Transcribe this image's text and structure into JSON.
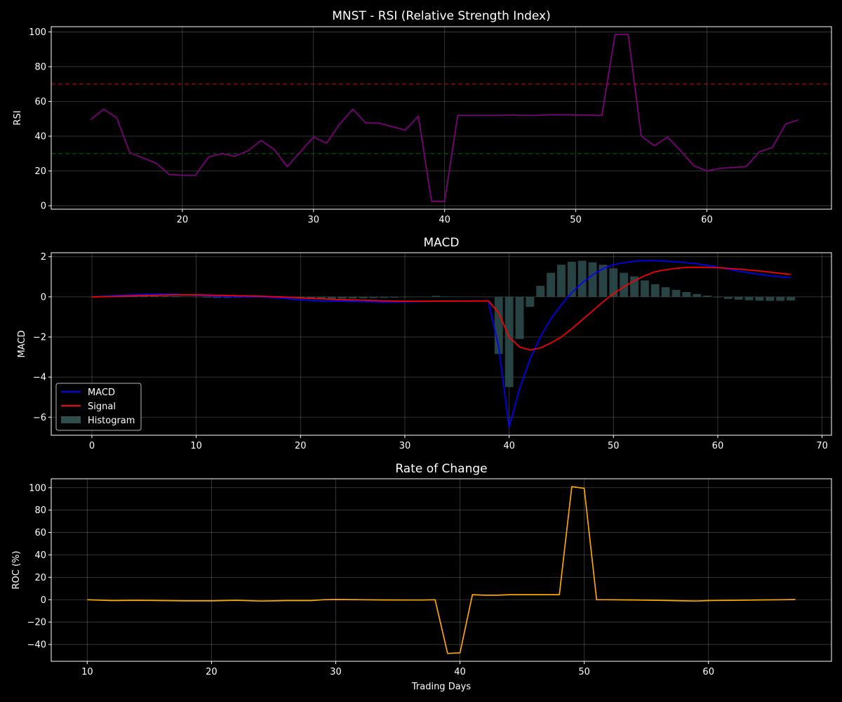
{
  "figure": {
    "background": "#000000"
  },
  "chart_data": [
    {
      "type": "line",
      "title": "MNST - RSI (Relative Strength Index)",
      "xlabel": "",
      "ylabel": "RSI",
      "xlim": [
        10,
        69.5
      ],
      "ylim": [
        -2,
        103
      ],
      "xticks": [
        20,
        30,
        40,
        50,
        60
      ],
      "yticks": [
        0,
        20,
        40,
        60,
        80,
        100
      ],
      "grid": true,
      "reference_lines": [
        {
          "y": 70,
          "color": "#cc0022",
          "style": "dashed"
        },
        {
          "y": 30,
          "color": "#006400",
          "style": "dashed"
        }
      ],
      "series": [
        {
          "color": "#800080",
          "x": [
            13,
            14,
            15,
            16,
            17,
            18,
            19,
            20,
            21,
            22,
            23,
            24,
            25,
            26,
            27,
            28,
            29,
            30,
            31,
            32,
            33,
            34,
            35,
            36,
            37,
            38,
            39,
            40,
            41,
            42,
            43,
            44,
            45,
            46,
            47,
            48,
            49,
            50,
            51,
            52,
            53,
            54,
            55,
            56,
            57,
            58,
            59,
            60,
            61,
            62,
            63,
            64,
            65,
            66,
            67
          ],
          "y": [
            49.5,
            55.5,
            50.5,
            30.5,
            27.5,
            24.5,
            18,
            17.5,
            17.5,
            28,
            30,
            28.5,
            31.5,
            37.5,
            32.5,
            22.5,
            31,
            39.5,
            36,
            47,
            55.5,
            47.5,
            47.5,
            45.5,
            43.5,
            51.5,
            2.5,
            2.5,
            52,
            52,
            52,
            52,
            52.2,
            52,
            52,
            52.3,
            52.3,
            52.1,
            52.1,
            52,
            98.5,
            98.5,
            40,
            34.5,
            39.5,
            31.5,
            23,
            20,
            21.5,
            22,
            22.5,
            31,
            33.5,
            47,
            49.5
          ]
        }
      ]
    },
    {
      "type": "line",
      "title": "MACD",
      "xlabel": "",
      "ylabel": "MACD",
      "xlim": [
        -3.9,
        70.9
      ],
      "ylim": [
        -6.9,
        2.2
      ],
      "xticks": [
        0,
        10,
        20,
        30,
        40,
        50,
        60,
        70
      ],
      "yticks": [
        -6,
        -4,
        -2,
        0,
        2
      ],
      "grid": true,
      "legend": {
        "position": "lower-left",
        "entries": [
          "MACD",
          "Signal",
          "Histogram"
        ]
      },
      "series": [
        {
          "name": "MACD",
          "color": "#0000ff",
          "x": [
            0,
            2,
            4,
            6,
            8,
            10,
            12,
            14,
            16,
            18,
            20,
            22,
            24,
            26,
            28,
            30,
            32,
            34,
            36,
            38,
            39,
            40,
            41,
            42,
            43,
            44,
            45,
            46,
            47,
            48,
            49,
            50,
            51,
            52,
            53,
            54,
            55,
            56,
            57,
            58,
            59,
            60,
            61,
            62,
            63,
            64,
            65,
            66,
            67
          ],
          "y": [
            0,
            0.05,
            0.1,
            0.13,
            0.13,
            0.08,
            0.03,
            0.01,
            0,
            -0.05,
            -0.15,
            -0.2,
            -0.22,
            -0.24,
            -0.26,
            -0.25,
            -0.23,
            -0.21,
            -0.2,
            -0.2,
            -2.5,
            -6.5,
            -4.6,
            -3.1,
            -2,
            -1.1,
            -0.4,
            0.2,
            0.7,
            1.1,
            1.4,
            1.6,
            1.7,
            1.78,
            1.8,
            1.8,
            1.78,
            1.75,
            1.7,
            1.65,
            1.57,
            1.48,
            1.38,
            1.28,
            1.2,
            1.12,
            1.05,
            1,
            0.95
          ]
        },
        {
          "name": "Signal",
          "color": "#ff0000",
          "x": [
            0,
            2,
            4,
            6,
            8,
            10,
            12,
            14,
            16,
            18,
            20,
            22,
            24,
            26,
            28,
            30,
            32,
            34,
            36,
            38,
            39,
            40,
            41,
            42,
            43,
            44,
            45,
            46,
            47,
            48,
            49,
            50,
            51,
            52,
            53,
            54,
            55,
            56,
            57,
            58,
            59,
            60,
            61,
            62,
            63,
            64,
            65,
            66,
            67
          ],
          "y": [
            0,
            0.02,
            0.05,
            0.08,
            0.1,
            0.1,
            0.08,
            0.05,
            0.03,
            0,
            -0.05,
            -0.1,
            -0.14,
            -0.17,
            -0.2,
            -0.22,
            -0.22,
            -0.21,
            -0.21,
            -0.2,
            -0.8,
            -2,
            -2.5,
            -2.65,
            -2.55,
            -2.3,
            -2,
            -1.6,
            -1.15,
            -0.7,
            -0.25,
            0.15,
            0.5,
            0.8,
            1.05,
            1.25,
            1.35,
            1.42,
            1.47,
            1.48,
            1.47,
            1.45,
            1.42,
            1.38,
            1.34,
            1.29,
            1.23,
            1.17,
            1.12
          ]
        },
        {
          "name": "Histogram",
          "color": "#2f4f4f",
          "style": "bar",
          "x": [
            0,
            1,
            2,
            3,
            4,
            5,
            6,
            7,
            8,
            9,
            10,
            11,
            12,
            13,
            14,
            15,
            16,
            17,
            18,
            19,
            20,
            21,
            22,
            23,
            24,
            25,
            26,
            27,
            28,
            29,
            30,
            31,
            32,
            33,
            34,
            35,
            36,
            37,
            38,
            39,
            40,
            41,
            42,
            43,
            44,
            45,
            46,
            47,
            48,
            49,
            50,
            51,
            52,
            53,
            54,
            55,
            56,
            57,
            58,
            59,
            60,
            61,
            62,
            63,
            64,
            65,
            66,
            67
          ],
          "y": [
            0,
            0.02,
            0.03,
            0.04,
            0.05,
            0.05,
            0.05,
            0.04,
            0.03,
            0.01,
            -0.02,
            -0.04,
            -0.05,
            -0.05,
            -0.04,
            -0.03,
            -0.02,
            -0.02,
            -0.03,
            -0.04,
            -0.06,
            -0.1,
            -0.1,
            -0.1,
            -0.09,
            -0.08,
            -0.07,
            -0.06,
            -0.05,
            -0.04,
            -0.02,
            -0.01,
            0,
            0.05,
            0.02,
            0.01,
            0.01,
            0,
            0,
            -2.85,
            -4.5,
            -2.1,
            -0.5,
            0.55,
            1.2,
            1.6,
            1.75,
            1.8,
            1.72,
            1.6,
            1.42,
            1.2,
            1.02,
            0.82,
            0.63,
            0.48,
            0.35,
            0.24,
            0.14,
            0.06,
            -0.03,
            -0.1,
            -0.14,
            -0.17,
            -0.19,
            -0.2,
            -0.2,
            -0.18
          ]
        }
      ]
    },
    {
      "type": "line",
      "title": "Rate of Change",
      "xlabel": "Trading Days",
      "ylabel": "ROC (%)",
      "xlim": [
        7.1,
        69.9
      ],
      "ylim": [
        -55,
        108
      ],
      "xticks": [
        10,
        20,
        30,
        40,
        50,
        60
      ],
      "yticks": [
        -40,
        -20,
        0,
        20,
        40,
        60,
        80,
        100
      ],
      "grid": true,
      "series": [
        {
          "color": "#ffa500",
          "x": [
            10,
            12,
            14,
            16,
            18,
            20,
            22,
            24,
            25,
            26,
            28,
            29,
            30,
            32,
            34,
            36,
            37,
            38,
            39,
            40,
            41,
            42,
            43,
            44,
            45,
            46,
            47,
            48,
            49,
            50,
            51,
            52,
            54,
            56,
            58,
            59,
            60,
            62,
            64,
            66,
            67
          ],
          "y": [
            0,
            -0.8,
            -0.5,
            -0.8,
            -1,
            -1,
            -0.5,
            -1.2,
            -1,
            -0.8,
            -0.8,
            0,
            0.2,
            0,
            -0.2,
            -0.3,
            -0.3,
            0,
            -48,
            -47.5,
            4.5,
            4,
            4,
            4.5,
            4.5,
            4.5,
            4.5,
            4.5,
            101,
            99.5,
            0,
            0,
            -0.2,
            -0.5,
            -1,
            -1.2,
            -0.8,
            -0.5,
            -0.2,
            0,
            0.2
          ]
        }
      ]
    }
  ]
}
